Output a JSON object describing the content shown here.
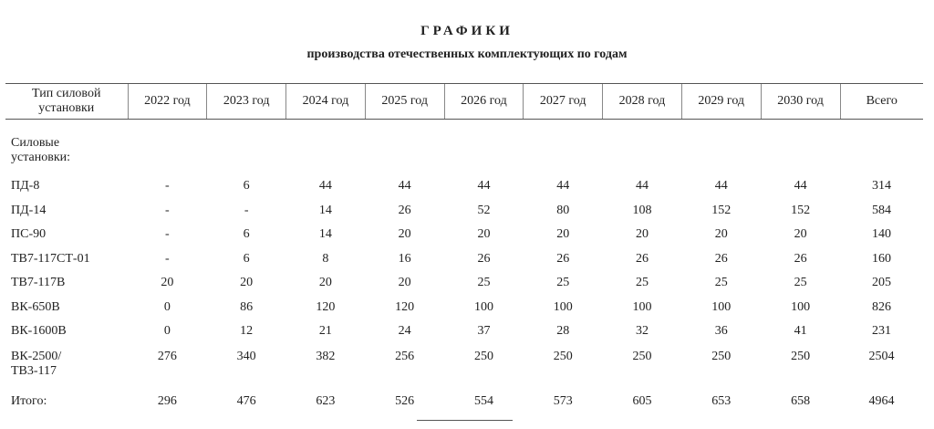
{
  "title": "ГРАФИКИ",
  "subtitle": "производства отечественных комплектующих по годам",
  "headers": [
    "Тип силовой установки",
    "2022 год",
    "2023 год",
    "2024 год",
    "2025 год",
    "2026 год",
    "2027 год",
    "2028 год",
    "2029 год",
    "2030 год",
    "Всего"
  ],
  "group_label": "Силовые установки:",
  "rows": [
    {
      "name": "ПД-8",
      "values": [
        "-",
        "6",
        "44",
        "44",
        "44",
        "44",
        "44",
        "44",
        "44",
        "314"
      ]
    },
    {
      "name": "ПД-14",
      "values": [
        "-",
        "-",
        "14",
        "26",
        "52",
        "80",
        "108",
        "152",
        "152",
        "584"
      ]
    },
    {
      "name": "ПС-90",
      "values": [
        "-",
        "6",
        "14",
        "20",
        "20",
        "20",
        "20",
        "20",
        "20",
        "140"
      ]
    },
    {
      "name": "ТВ7-117СТ-01",
      "values": [
        "-",
        "6",
        "8",
        "16",
        "26",
        "26",
        "26",
        "26",
        "26",
        "160"
      ]
    },
    {
      "name": "ТВ7-117В",
      "values": [
        "20",
        "20",
        "20",
        "20",
        "25",
        "25",
        "25",
        "25",
        "25",
        "205"
      ]
    },
    {
      "name": "ВК-650В",
      "values": [
        "0",
        "86",
        "120",
        "120",
        "100",
        "100",
        "100",
        "100",
        "100",
        "826"
      ]
    },
    {
      "name": "ВК-1600В",
      "values": [
        "0",
        "12",
        "21",
        "24",
        "37",
        "28",
        "32",
        "36",
        "41",
        "231"
      ]
    },
    {
      "name": "ВК-2500/ ТВ3-117",
      "values": [
        "276",
        "340",
        "382",
        "256",
        "250",
        "250",
        "250",
        "250",
        "250",
        "2504"
      ]
    }
  ],
  "total": {
    "name": "Итого:",
    "values": [
      "296",
      "476",
      "623",
      "526",
      "554",
      "573",
      "605",
      "653",
      "658",
      "4964"
    ]
  }
}
